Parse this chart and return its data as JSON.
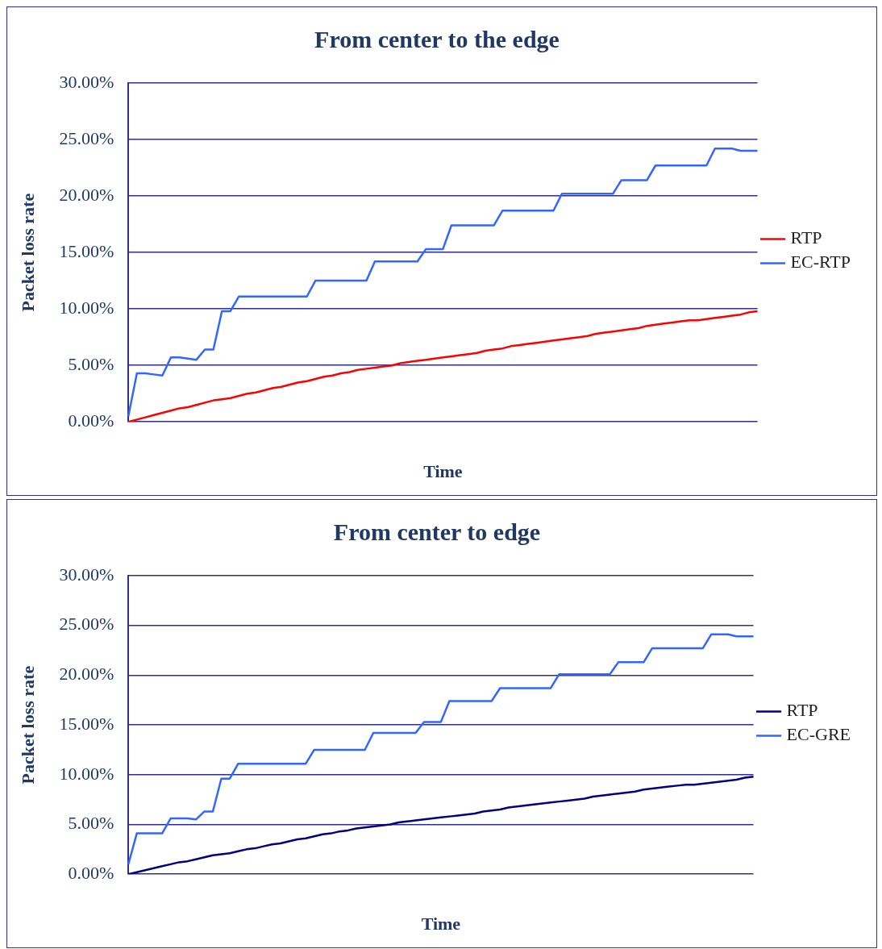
{
  "chart_data": [
    {
      "type": "line",
      "title": "From center to the edge",
      "xlabel": "Time",
      "ylabel": "Packet loss rate",
      "categories": [
        null,
        null,
        null,
        null,
        null,
        null,
        null,
        null,
        null,
        null,
        null,
        null,
        null,
        null,
        null,
        null,
        null,
        null,
        null,
        null,
        null,
        null,
        null,
        null,
        null,
        null,
        null,
        null,
        null,
        null,
        null,
        null,
        null,
        null,
        null,
        null,
        null,
        null,
        null,
        null,
        null,
        null,
        null,
        null,
        null,
        null,
        null,
        null,
        null,
        null,
        null,
        null,
        null,
        null,
        null,
        null,
        null,
        null,
        null,
        null,
        null,
        null,
        null,
        null,
        null,
        null,
        null,
        null,
        null,
        null,
        null,
        null,
        null,
        null,
        null
      ],
      "ylim": [
        0,
        30
      ],
      "yticks": [
        {
          "value": 0,
          "label": "0.00%"
        },
        {
          "value": 5,
          "label": "5.00%"
        },
        {
          "value": 10,
          "label": "10.00%"
        },
        {
          "value": 15,
          "label": "15.00%"
        },
        {
          "value": 20,
          "label": "20.00%"
        },
        {
          "value": 25,
          "label": "25.00%"
        },
        {
          "value": 30,
          "label": "30.00%"
        }
      ],
      "grid": "y",
      "legend": "right",
      "marker": "none",
      "line_style": "solid",
      "series": [
        {
          "name": "RTP",
          "color": "#ff0000",
          "values": [
            0.0,
            0.2,
            0.4,
            0.6,
            0.8,
            1.0,
            1.2,
            1.3,
            1.5,
            1.7,
            1.9,
            2.0,
            2.1,
            2.3,
            2.5,
            2.6,
            2.8,
            3.0,
            3.1,
            3.3,
            3.5,
            3.6,
            3.8,
            4.0,
            4.1,
            4.3,
            4.4,
            4.6,
            4.7,
            4.8,
            4.9,
            5.0,
            5.2,
            5.3,
            5.4,
            5.5,
            5.6,
            5.7,
            5.8,
            5.9,
            6.0,
            6.1,
            6.3,
            6.4,
            6.5,
            6.7,
            6.8,
            6.9,
            7.0,
            7.1,
            7.2,
            7.3,
            7.4,
            7.5,
            7.6,
            7.8,
            7.9,
            8.0,
            8.1,
            8.2,
            8.3,
            8.5,
            8.6,
            8.7,
            8.8,
            8.9,
            9.0,
            9.0,
            9.1,
            9.2,
            9.3,
            9.4,
            9.5,
            9.7,
            9.8
          ]
        },
        {
          "name": "EC-RTP",
          "color": "#3366ff",
          "values": [
            0.5,
            4.3,
            4.3,
            4.2,
            4.1,
            5.7,
            5.7,
            5.6,
            5.5,
            6.4,
            6.4,
            9.8,
            9.8,
            11.1,
            11.1,
            11.1,
            11.1,
            11.1,
            11.1,
            11.1,
            11.1,
            11.1,
            12.5,
            12.5,
            12.5,
            12.5,
            12.5,
            12.5,
            12.5,
            14.2,
            14.2,
            14.2,
            14.2,
            14.2,
            14.2,
            15.3,
            15.3,
            15.3,
            17.4,
            17.4,
            17.4,
            17.4,
            17.4,
            17.4,
            18.7,
            18.7,
            18.7,
            18.7,
            18.7,
            18.7,
            18.7,
            20.2,
            20.2,
            20.2,
            20.2,
            20.2,
            20.2,
            20.2,
            21.4,
            21.4,
            21.4,
            21.4,
            22.7,
            22.7,
            22.7,
            22.7,
            22.7,
            22.7,
            22.7,
            24.2,
            24.2,
            24.2,
            24.0,
            24.0,
            24.0
          ]
        }
      ]
    },
    {
      "type": "line",
      "title": "From center to edge",
      "xlabel": "Time",
      "ylabel": "Packet loss rate",
      "categories": [
        null,
        null,
        null,
        null,
        null,
        null,
        null,
        null,
        null,
        null,
        null,
        null,
        null,
        null,
        null,
        null,
        null,
        null,
        null,
        null,
        null,
        null,
        null,
        null,
        null,
        null,
        null,
        null,
        null,
        null,
        null,
        null,
        null,
        null,
        null,
        null,
        null,
        null,
        null,
        null,
        null,
        null,
        null,
        null,
        null,
        null,
        null,
        null,
        null,
        null,
        null,
        null,
        null,
        null,
        null,
        null,
        null,
        null,
        null,
        null,
        null,
        null,
        null,
        null,
        null,
        null,
        null,
        null,
        null,
        null,
        null,
        null,
        null,
        null,
        null
      ],
      "ylim": [
        0,
        30
      ],
      "yticks": [
        {
          "value": 0,
          "label": "0.00%"
        },
        {
          "value": 5,
          "label": "5.00%"
        },
        {
          "value": 10,
          "label": "10.00%"
        },
        {
          "value": 15,
          "label": "15.00%"
        },
        {
          "value": 20,
          "label": "20.00%"
        },
        {
          "value": 25,
          "label": "25.00%"
        },
        {
          "value": 30,
          "label": "30.00%"
        }
      ],
      "grid": "y",
      "legend": "right",
      "marker": "none",
      "line_style": "solid",
      "series": [
        {
          "name": "RTP",
          "color": "#000080",
          "values": [
            0.0,
            0.2,
            0.4,
            0.6,
            0.8,
            1.0,
            1.2,
            1.3,
            1.5,
            1.7,
            1.9,
            2.0,
            2.1,
            2.3,
            2.5,
            2.6,
            2.8,
            3.0,
            3.1,
            3.3,
            3.5,
            3.6,
            3.8,
            4.0,
            4.1,
            4.3,
            4.4,
            4.6,
            4.7,
            4.8,
            4.9,
            5.0,
            5.2,
            5.3,
            5.4,
            5.5,
            5.6,
            5.7,
            5.8,
            5.9,
            6.0,
            6.1,
            6.3,
            6.4,
            6.5,
            6.7,
            6.8,
            6.9,
            7.0,
            7.1,
            7.2,
            7.3,
            7.4,
            7.5,
            7.6,
            7.8,
            7.9,
            8.0,
            8.1,
            8.2,
            8.3,
            8.5,
            8.6,
            8.7,
            8.8,
            8.9,
            9.0,
            9.0,
            9.1,
            9.2,
            9.3,
            9.4,
            9.5,
            9.7,
            9.8
          ]
        },
        {
          "name": "EC-GRE",
          "color": "#3366ff",
          "values": [
            1.0,
            4.1,
            4.1,
            4.1,
            4.1,
            5.6,
            5.6,
            5.6,
            5.5,
            6.3,
            6.3,
            9.6,
            9.6,
            11.1,
            11.1,
            11.1,
            11.1,
            11.1,
            11.1,
            11.1,
            11.1,
            11.1,
            12.5,
            12.5,
            12.5,
            12.5,
            12.5,
            12.5,
            12.5,
            14.2,
            14.2,
            14.2,
            14.2,
            14.2,
            14.2,
            15.3,
            15.3,
            15.3,
            17.4,
            17.4,
            17.4,
            17.4,
            17.4,
            17.4,
            18.7,
            18.7,
            18.7,
            18.7,
            18.7,
            18.7,
            18.7,
            20.1,
            20.1,
            20.1,
            20.1,
            20.1,
            20.1,
            20.1,
            21.3,
            21.3,
            21.3,
            21.3,
            22.7,
            22.7,
            22.7,
            22.7,
            22.7,
            22.7,
            22.7,
            24.1,
            24.1,
            24.1,
            23.9,
            23.9,
            23.9
          ]
        }
      ]
    }
  ]
}
